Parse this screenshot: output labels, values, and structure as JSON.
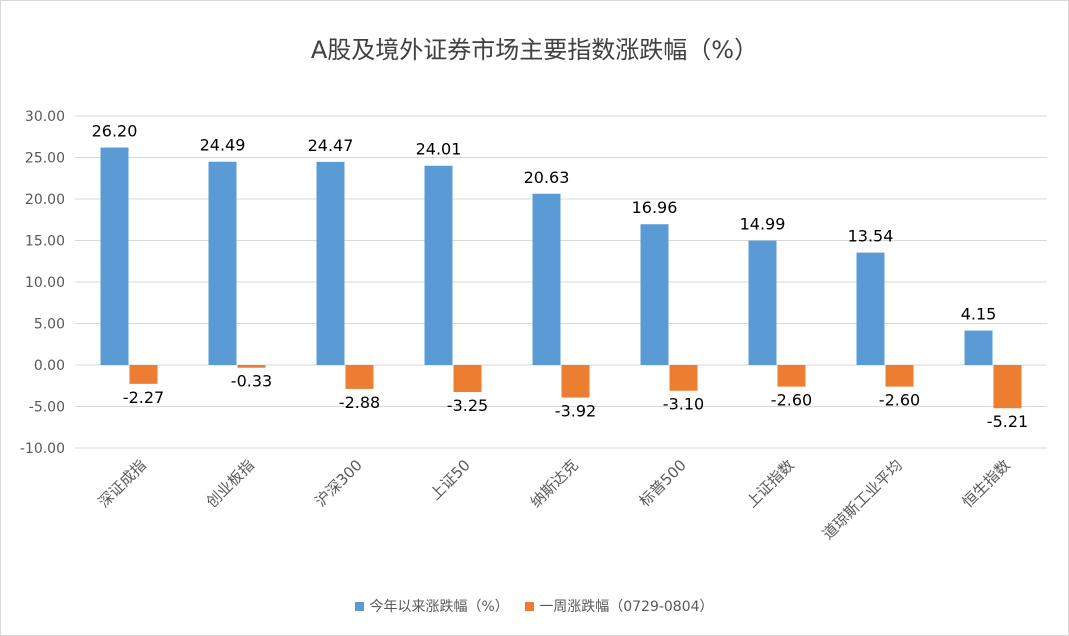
{
  "chart_data": {
    "type": "bar",
    "title": "A股及境外证券市场主要指数涨跌幅（%）",
    "categories": [
      "深证成指",
      "创业板指",
      "沪深300",
      "上证50",
      "纳斯达克",
      "标普500",
      "上证指数",
      "道琼斯工业平均",
      "恒生指数"
    ],
    "series": [
      {
        "name": "今年以来涨跌幅（%）",
        "color": "#5b9bd5",
        "values": [
          26.2,
          24.49,
          24.47,
          24.01,
          20.63,
          16.96,
          14.99,
          13.54,
          4.15
        ],
        "labels": [
          "26.20",
          "24.49",
          "24.47",
          "24.01",
          "20.63",
          "16.96",
          "14.99",
          "13.54",
          "4.15"
        ]
      },
      {
        "name": "一周涨跌幅（0729-0804）",
        "color": "#ed7d31",
        "values": [
          -2.27,
          -0.33,
          -2.88,
          -3.25,
          -3.92,
          -3.1,
          -2.6,
          -2.6,
          -5.21
        ],
        "labels": [
          "-2.27",
          "-0.33",
          "-2.88",
          "-3.25",
          "-3.92",
          "-3.10",
          "-2.60",
          "-2.60",
          "-5.21"
        ]
      }
    ],
    "ylim": [
      -10,
      30
    ],
    "yticks": [
      30,
      25,
      20,
      15,
      10,
      5,
      0,
      -5,
      -10
    ],
    "ytick_labels": [
      "30.00",
      "25.00",
      "20.00",
      "15.00",
      "10.00",
      "5.00",
      "0.00",
      "-5.00",
      "-10.00"
    ],
    "grid": true,
    "legend": "bottom",
    "xlabel": "",
    "ylabel": ""
  }
}
